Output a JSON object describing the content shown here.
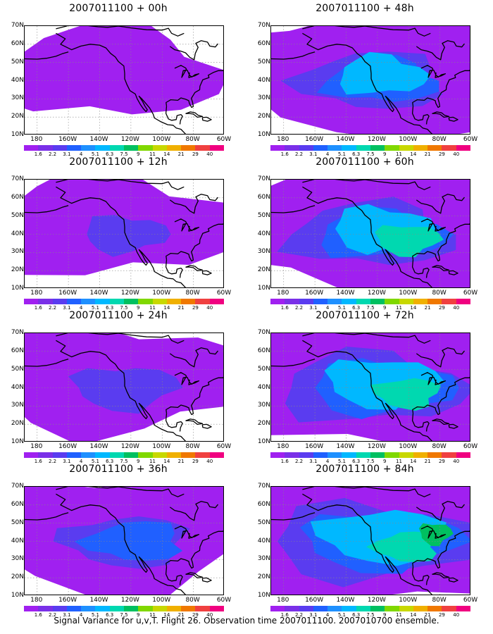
{
  "panels": [
    {
      "title": "2007011100 + 00h",
      "level": 0
    },
    {
      "title": "2007011100 + 48h",
      "level": 4
    },
    {
      "title": "2007011100 + 12h",
      "level": 1
    },
    {
      "title": "2007011100 + 60h",
      "level": 5
    },
    {
      "title": "2007011100 + 24h",
      "level": 2
    },
    {
      "title": "2007011100 + 72h",
      "level": 6
    },
    {
      "title": "2007011100 + 36h",
      "level": 3
    },
    {
      "title": "2007011100 + 84h",
      "level": 7
    }
  ],
  "y_ticks": [
    "70N",
    "60N",
    "50N",
    "40N",
    "30N",
    "20N",
    "10N"
  ],
  "x_ticks": [
    "180",
    "160W",
    "140W",
    "120W",
    "100W",
    "80W",
    "60W"
  ],
  "colorbar": {
    "labels": [
      "1.6",
      "2.2",
      "3.1",
      "4",
      "5.1",
      "6.3",
      "7.5",
      "9",
      "11",
      "14",
      "21",
      "29",
      "40"
    ],
    "colors": [
      "#a020f0",
      "#7a30e8",
      "#5a3cf0",
      "#2060ff",
      "#1e90ff",
      "#00b8ff",
      "#00d8b0",
      "#00c060",
      "#80d800",
      "#c8d800",
      "#f0b000",
      "#f07800",
      "#f04040",
      "#f00080"
    ]
  },
  "caption": "Signal Variance for u,v,T. Flight 26. Observation time 2007011100. 2007010700 ensemble."
}
